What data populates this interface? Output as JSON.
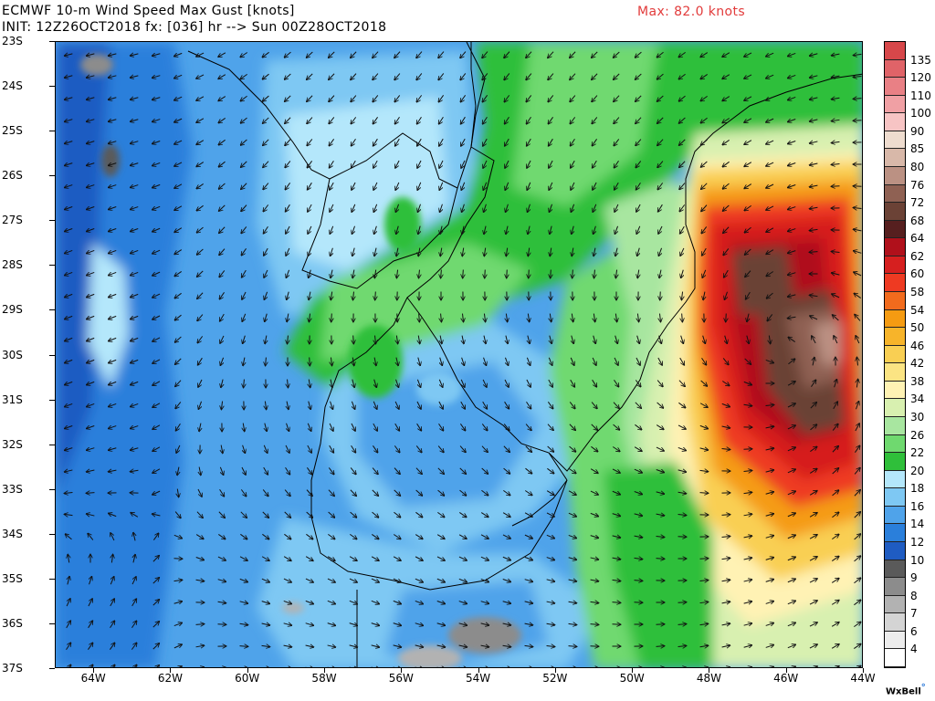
{
  "header": {
    "title": "ECMWF 10-m Wind Speed Max Gust [knots]",
    "init_line": "INIT: 12Z26OCT2018 fx: [036] hr --> Sun 00Z28OCT2018",
    "max_label": "Max: 82.0 knots",
    "max_color": "#e23b3b"
  },
  "map": {
    "lat_labels": [
      "23S",
      "24S",
      "25S",
      "26S",
      "27S",
      "28S",
      "29S",
      "30S",
      "31S",
      "32S",
      "33S",
      "34S",
      "35S",
      "36S",
      "37S"
    ],
    "lon_labels": [
      "64W",
      "62W",
      "60W",
      "58W",
      "56W",
      "54W",
      "52W",
      "50W",
      "48W",
      "46W",
      "44W"
    ],
    "lat_range": [
      -37,
      -23
    ],
    "lon_range": [
      -65,
      -44
    ]
  },
  "colorbar": {
    "labels": [
      "135",
      "120",
      "110",
      "100",
      "90",
      "85",
      "80",
      "76",
      "72",
      "68",
      "64",
      "62",
      "60",
      "58",
      "54",
      "50",
      "46",
      "42",
      "38",
      "34",
      "30",
      "26",
      "22",
      "20",
      "18",
      "16",
      "14",
      "12",
      "10",
      "9",
      "8",
      "7",
      "6",
      "4"
    ],
    "colors": [
      "#d7474a",
      "#e06368",
      "#e98085",
      "#f0a0a4",
      "#f7c4c4",
      "#eedccf",
      "#d8b8a9",
      "#bb9183",
      "#8f6153",
      "#6b4236",
      "#561f1f",
      "#b0101b",
      "#d61f1f",
      "#ee3a22",
      "#f26b1d",
      "#f59b12",
      "#f7b42a",
      "#f9cf53",
      "#fbe483",
      "#fff2b4",
      "#d8f0b0",
      "#a8e6a0",
      "#6fd96f",
      "#2fbf3a",
      "#b4e7fb",
      "#7ec8f3",
      "#4fa3ea",
      "#2a7fdb",
      "#1f5cc2",
      "#5a5a5a",
      "#8c8c8c",
      "#b2b2b2",
      "#d4d4d4",
      "#ececec",
      "#ffffff"
    ]
  },
  "credit": "WxBell"
}
